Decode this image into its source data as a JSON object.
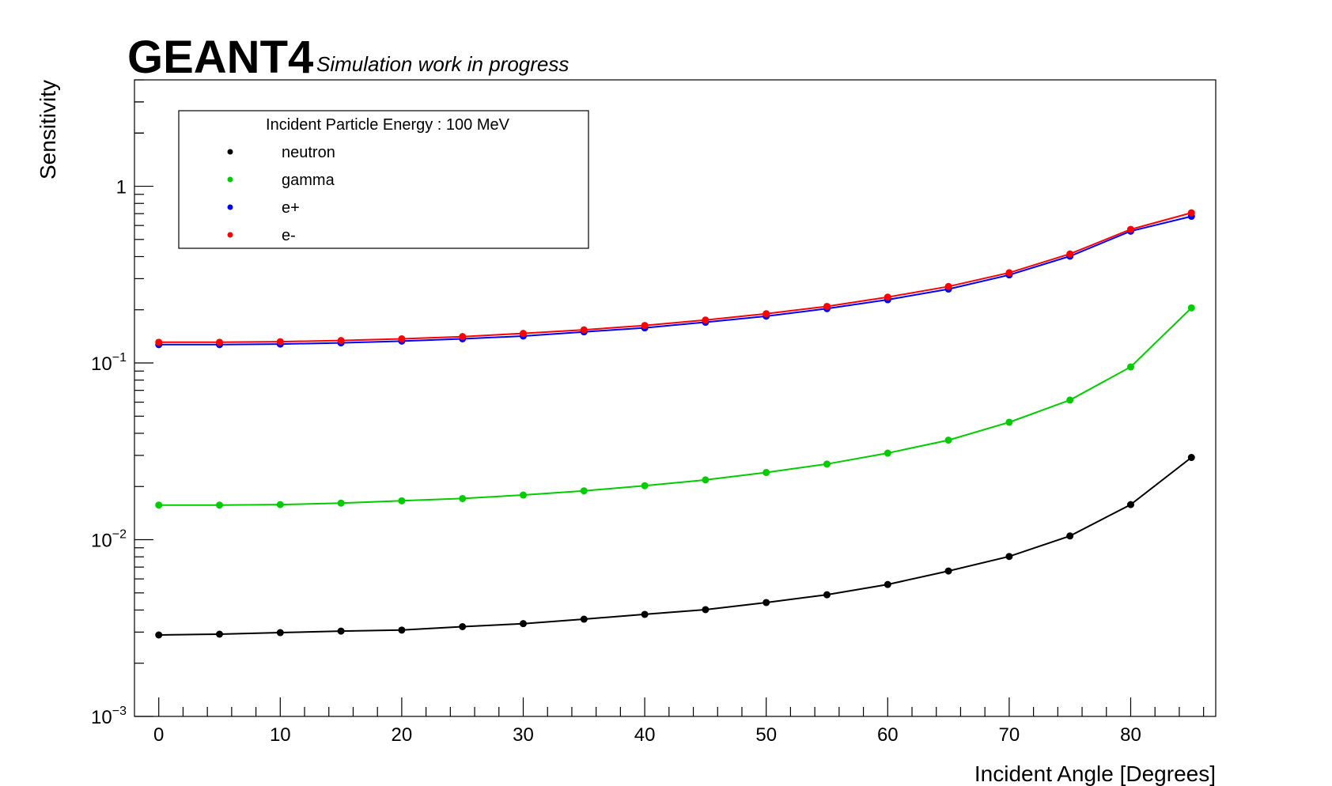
{
  "header": {
    "brand": "GEANT4",
    "subtitle": "Simulation work in progress"
  },
  "chart_data": {
    "type": "line",
    "title": "",
    "xlabel": "Incident Angle [Degrees]",
    "ylabel": "Sensitivity",
    "xlim": [
      -2,
      87
    ],
    "ylim": [
      0.001,
      4.0
    ],
    "yscale": "log",
    "x_ticks": [
      0,
      10,
      20,
      30,
      40,
      50,
      60,
      70,
      80
    ],
    "y_ticks": [
      {
        "value": 0.001,
        "base": "10",
        "exp": "−3"
      },
      {
        "value": 0.01,
        "base": "10",
        "exp": "−2"
      },
      {
        "value": 0.1,
        "base": "10",
        "exp": "−1"
      },
      {
        "value": 1,
        "base": "1",
        "exp": ""
      }
    ],
    "legend": {
      "title": "Incident Particle Energy : 100 MeV",
      "position": "top-left"
    },
    "x": [
      0,
      5,
      10,
      15,
      20,
      25,
      30,
      35,
      40,
      45,
      50,
      55,
      60,
      65,
      70,
      75,
      80,
      85
    ],
    "series": [
      {
        "name": "neutron",
        "color": "#000000",
        "values": [
          0.00289,
          0.00292,
          0.00298,
          0.00304,
          0.00308,
          0.00322,
          0.00335,
          0.00355,
          0.00378,
          0.00402,
          0.00441,
          0.00488,
          0.00558,
          0.00665,
          0.00804,
          0.0105,
          0.0158,
          0.0292
        ]
      },
      {
        "name": "gamma",
        "color": "#00cc00",
        "values": [
          0.0157,
          0.0157,
          0.0158,
          0.0161,
          0.0166,
          0.0171,
          0.0179,
          0.0189,
          0.0202,
          0.0218,
          0.024,
          0.0268,
          0.0309,
          0.0366,
          0.0462,
          0.0617,
          0.095,
          0.205
        ]
      },
      {
        "name": "e+",
        "color": "#0000ff",
        "values": [
          0.127,
          0.127,
          0.128,
          0.13,
          0.133,
          0.137,
          0.142,
          0.15,
          0.158,
          0.17,
          0.184,
          0.203,
          0.228,
          0.262,
          0.315,
          0.402,
          0.557,
          0.676
        ]
      },
      {
        "name": "e-",
        "color": "#ff0000",
        "values": [
          0.131,
          0.131,
          0.132,
          0.134,
          0.137,
          0.141,
          0.147,
          0.154,
          0.163,
          0.175,
          0.19,
          0.209,
          0.236,
          0.271,
          0.324,
          0.414,
          0.57,
          0.708
        ]
      }
    ]
  }
}
